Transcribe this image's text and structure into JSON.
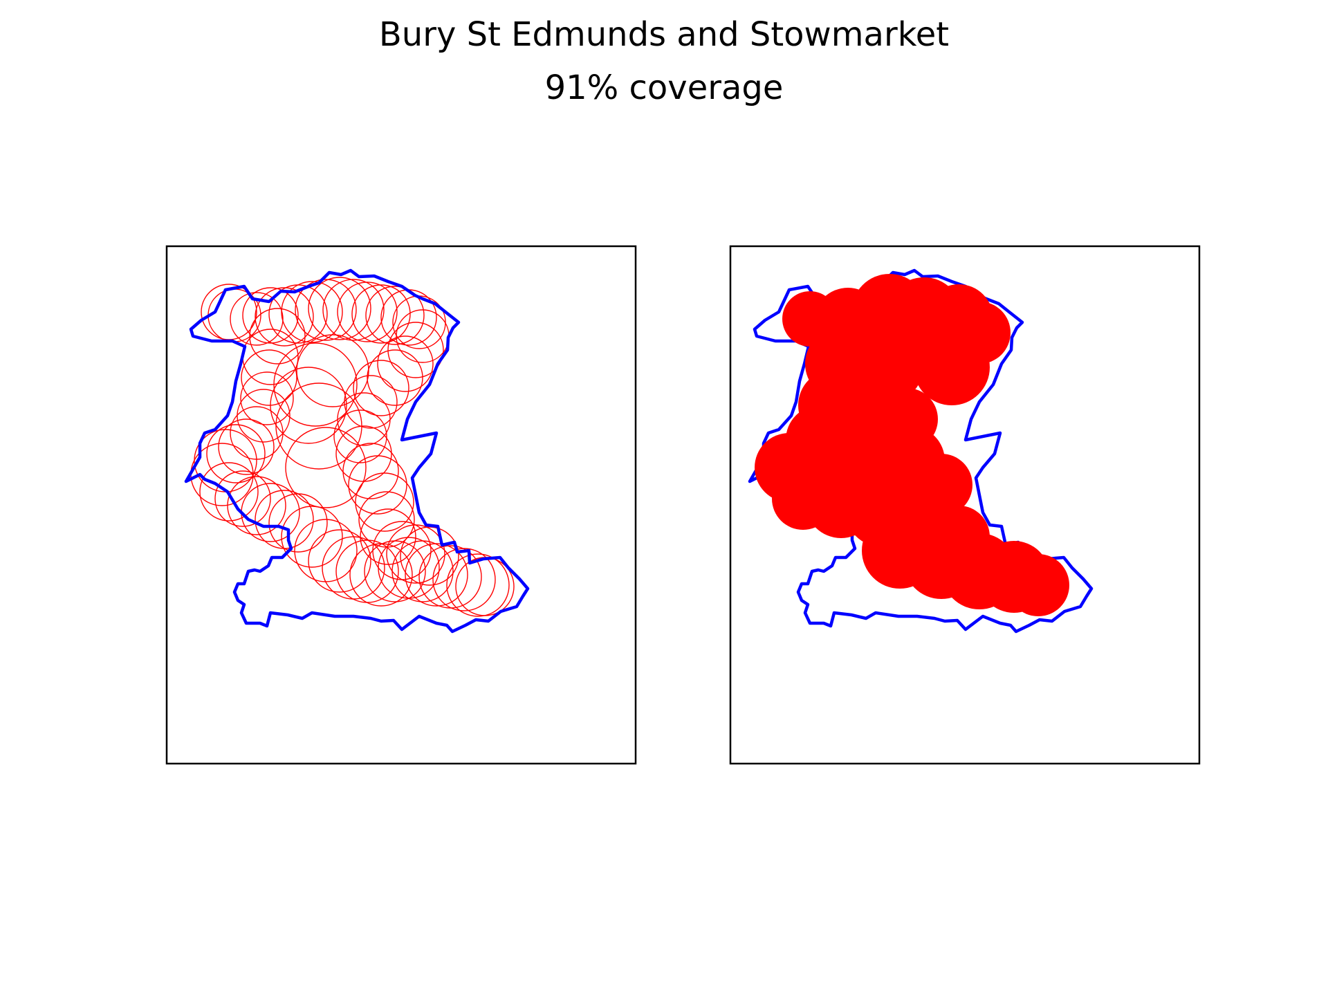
{
  "title": "Bury St Edmunds and Stowmarket",
  "subtitle": "91% coverage",
  "colors": {
    "boundary": "#0000ff",
    "coverage": "#ff0000",
    "frame": "#000000",
    "background": "#ffffff"
  },
  "panels": [
    {
      "id": "outline-panel",
      "style": "circle-outlines"
    },
    {
      "id": "filled-panel",
      "style": "filled-circles"
    }
  ]
}
